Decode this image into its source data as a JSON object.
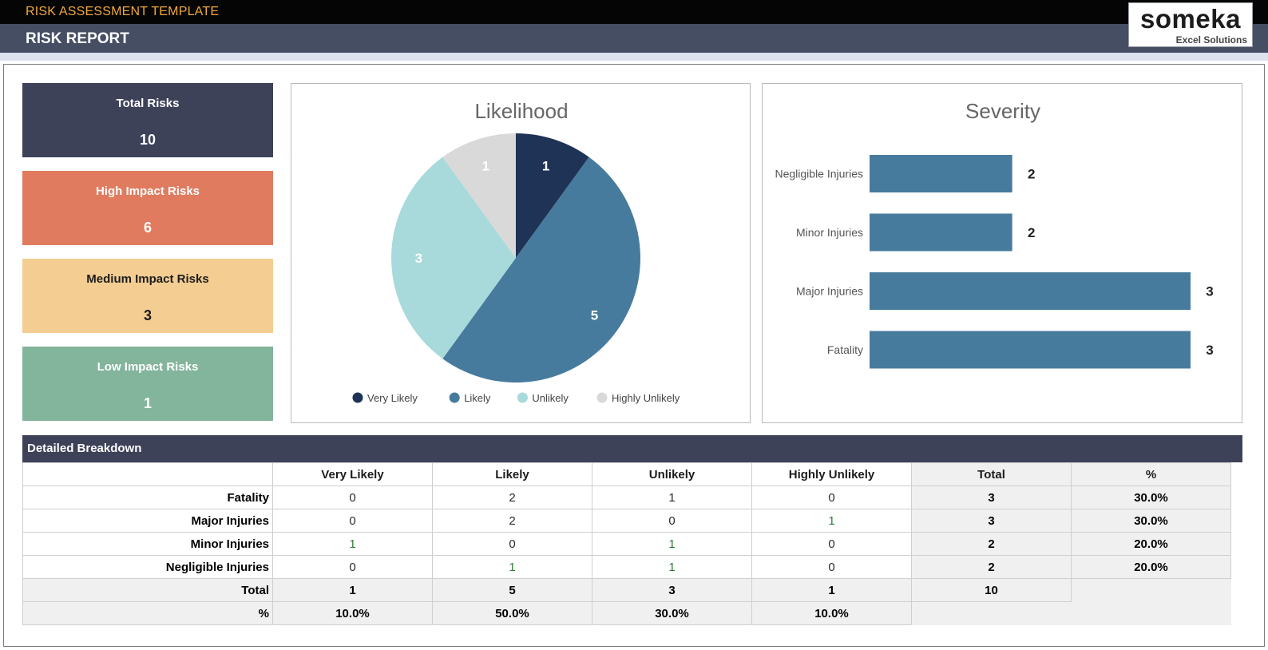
{
  "header": {
    "template_title": "RISK ASSESSMENT TEMPLATE",
    "report_title": "RISK REPORT",
    "logo_brand": "someka",
    "logo_sub": "Excel Solutions"
  },
  "cards": {
    "total": {
      "label": "Total Risks",
      "value": "10"
    },
    "high": {
      "label": "High Impact Risks",
      "value": "6"
    },
    "medium": {
      "label": "Medium Impact Risks",
      "value": "3"
    },
    "low": {
      "label": "Low Impact Risks",
      "value": "1"
    }
  },
  "chart_data": [
    {
      "type": "pie",
      "title": "Likelihood",
      "categories": [
        "Very Likely",
        "Likely",
        "Unlikely",
        "Highly Unlikely"
      ],
      "values": [
        1,
        5,
        3,
        1
      ],
      "colors": [
        "#1f3356",
        "#477b9d",
        "#a8d9db",
        "#d9d9d9"
      ],
      "label_colors": [
        "#ffffff",
        "#ffffff",
        "#ffffff",
        "#ffffff"
      ],
      "legend": "bottom"
    },
    {
      "type": "bar",
      "orientation": "horizontal",
      "title": "Severity",
      "categories": [
        "Negligible Injuries",
        "Minor Injuries",
        "Major Injuries",
        "Fatality"
      ],
      "values": [
        2,
        2,
        3,
        3
      ],
      "color": "#477b9d",
      "grid": false,
      "legend": "none"
    }
  ],
  "breakdown": {
    "title": "Detailed Breakdown",
    "columns": [
      "Very Likely",
      "Likely",
      "Unlikely",
      "Highly Unlikely",
      "Total",
      "%"
    ],
    "rows": [
      {
        "label": "Fatality",
        "values": [
          "0",
          "2",
          "1",
          "0"
        ],
        "total": "3",
        "pct": "30.0%"
      },
      {
        "label": "Major Injuries",
        "values": [
          "0",
          "2",
          "0",
          "1"
        ],
        "total": "3",
        "pct": "30.0%"
      },
      {
        "label": "Minor Injuries",
        "values": [
          "1",
          "0",
          "1",
          "0"
        ],
        "total": "2",
        "pct": "20.0%"
      },
      {
        "label": "Negligible Injuries",
        "values": [
          "0",
          "1",
          "1",
          "0"
        ],
        "total": "2",
        "pct": "20.0%"
      }
    ],
    "total_row": {
      "label": "Total",
      "values": [
        "1",
        "5",
        "3",
        "1"
      ],
      "grand_total": "10"
    },
    "pct_row": {
      "label": "%",
      "values": [
        "10.0%",
        "50.0%",
        "30.0%",
        "10.0%"
      ]
    }
  }
}
